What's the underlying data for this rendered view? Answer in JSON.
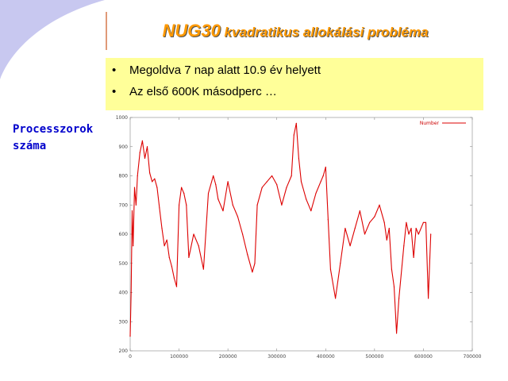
{
  "slide": {
    "title_main": "NUG30",
    "title_rest": " kvadratikus allokálási probléma",
    "bullets": [
      "Megoldva 7 nap alatt 10.9 év helyett",
      "Az első 600K másodperc …"
    ],
    "side_label_line1": "Processzorok",
    "side_label_line2": "száma",
    "colors": {
      "title": "#ff9900",
      "bullet_bg": "#ffff99",
      "side_label": "#0000cc",
      "background_arc": "#c8c8f0",
      "series": "#dd0000"
    }
  },
  "chart_data": {
    "type": "line",
    "title": "",
    "xlabel": "",
    "ylabel": "",
    "xlim": [
      0,
      700000
    ],
    "ylim": [
      200,
      1000
    ],
    "x_ticks": [
      "0",
      "100000",
      "200000",
      "300000",
      "400000",
      "500000",
      "600000",
      "700000"
    ],
    "y_ticks": [
      "200",
      "300",
      "400",
      "500",
      "600",
      "700",
      "800",
      "900",
      "1000"
    ],
    "legend": {
      "placement": "top-right",
      "entries": [
        "Number"
      ]
    },
    "series": [
      {
        "name": "Number",
        "color": "#dd0000",
        "x": [
          0,
          2000,
          4000,
          6000,
          9000,
          12000,
          15000,
          20000,
          25000,
          30000,
          35000,
          40000,
          45000,
          50000,
          55000,
          60000,
          65000,
          70000,
          75000,
          80000,
          85000,
          90000,
          95000,
          100000,
          105000,
          110000,
          115000,
          120000,
          130000,
          140000,
          150000,
          160000,
          170000,
          175000,
          180000,
          190000,
          200000,
          210000,
          220000,
          230000,
          240000,
          250000,
          255000,
          260000,
          270000,
          280000,
          290000,
          300000,
          310000,
          320000,
          330000,
          335000,
          340000,
          345000,
          350000,
          360000,
          370000,
          380000,
          390000,
          395000,
          400000,
          405000,
          410000,
          420000,
          430000,
          440000,
          450000,
          460000,
          470000,
          480000,
          490000,
          500000,
          510000,
          520000,
          525000,
          530000,
          535000,
          540000,
          545000,
          550000,
          560000,
          565000,
          570000,
          575000,
          580000,
          585000,
          590000,
          600000,
          605000,
          610000,
          615000
        ],
        "y": [
          250,
          400,
          680,
          560,
          760,
          700,
          800,
          880,
          920,
          860,
          900,
          810,
          780,
          790,
          760,
          690,
          620,
          560,
          580,
          520,
          490,
          450,
          420,
          700,
          760,
          740,
          700,
          520,
          600,
          560,
          480,
          740,
          800,
          770,
          720,
          680,
          780,
          700,
          660,
          600,
          530,
          470,
          500,
          700,
          760,
          780,
          800,
          770,
          700,
          760,
          800,
          940,
          980,
          860,
          780,
          720,
          680,
          740,
          780,
          800,
          830,
          650,
          480,
          380,
          500,
          620,
          560,
          620,
          680,
          600,
          640,
          660,
          700,
          640,
          580,
          620,
          480,
          420,
          260,
          380,
          560,
          640,
          600,
          620,
          520,
          620,
          600,
          640,
          640,
          380,
          600
        ]
      }
    ]
  }
}
